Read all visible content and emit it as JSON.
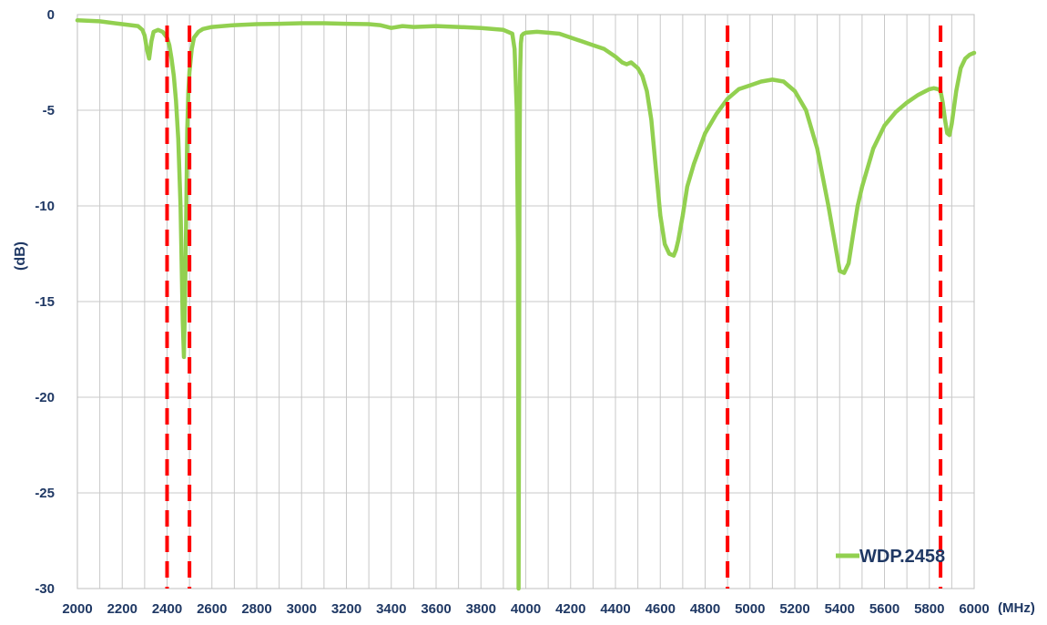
{
  "chart_data": {
    "type": "line",
    "title": "",
    "xlabel": "(MHz)",
    "ylabel": "(dB)",
    "xlim": [
      2000,
      6000
    ],
    "ylim": [
      -30,
      0
    ],
    "x_ticks": [
      "2000",
      "2200",
      "2400",
      "2600",
      "2800",
      "3000",
      "3200",
      "3400",
      "3600",
      "3800",
      "4000",
      "4200",
      "4400",
      "4600",
      "4800",
      "5000",
      "5200",
      "5400",
      "5600",
      "5800",
      "6000"
    ],
    "y_ticks": [
      "0",
      "-5",
      "-10",
      "-15",
      "-20",
      "-25",
      "-30"
    ],
    "grid": true,
    "legend_position": "bottom-right",
    "reference_lines": {
      "color": "#ff0000",
      "style": "dashed",
      "x": [
        2400,
        2500,
        4900,
        5850
      ]
    },
    "series": [
      {
        "name": "WDP.2458",
        "color": "#92d050",
        "x": [
          2000,
          2100,
          2200,
          2270,
          2290,
          2300,
          2310,
          2320,
          2330,
          2340,
          2360,
          2380,
          2400,
          2410,
          2420,
          2430,
          2440,
          2450,
          2460,
          2465,
          2470,
          2475,
          2480,
          2485,
          2490,
          2495,
          2500,
          2510,
          2520,
          2540,
          2560,
          2600,
          2700,
          2800,
          2900,
          3000,
          3100,
          3200,
          3300,
          3350,
          3400,
          3450,
          3500,
          3600,
          3700,
          3800,
          3900,
          3940,
          3950,
          3960,
          3965,
          3968,
          3970,
          3972,
          3975,
          3978,
          3982,
          3990,
          4000,
          4050,
          4100,
          4150,
          4200,
          4250,
          4300,
          4350,
          4400,
          4430,
          4450,
          4470,
          4500,
          4520,
          4540,
          4560,
          4580,
          4600,
          4620,
          4640,
          4660,
          4670,
          4680,
          4700,
          4720,
          4750,
          4800,
          4850,
          4900,
          4950,
          5000,
          5050,
          5100,
          5150,
          5200,
          5250,
          5300,
          5350,
          5380,
          5400,
          5420,
          5440,
          5460,
          5480,
          5500,
          5550,
          5600,
          5650,
          5700,
          5750,
          5800,
          5820,
          5840,
          5850,
          5860,
          5870,
          5880,
          5890,
          5900,
          5920,
          5940,
          5960,
          5980,
          6000
        ],
        "y": [
          -0.3,
          -0.35,
          -0.5,
          -0.6,
          -0.8,
          -1.1,
          -1.8,
          -2.3,
          -1.4,
          -0.9,
          -0.8,
          -0.9,
          -1.2,
          -1.6,
          -2.3,
          -3.2,
          -4.5,
          -6.5,
          -10,
          -13,
          -16,
          -17.9,
          -15,
          -11,
          -6,
          -4,
          -3,
          -1.8,
          -1.2,
          -0.9,
          -0.75,
          -0.65,
          -0.55,
          -0.5,
          -0.48,
          -0.45,
          -0.45,
          -0.48,
          -0.5,
          -0.55,
          -0.7,
          -0.6,
          -0.65,
          -0.6,
          -0.65,
          -0.7,
          -0.8,
          -1,
          -1.8,
          -5,
          -12,
          -30,
          -20,
          -8,
          -3,
          -1.5,
          -1.1,
          -1,
          -0.95,
          -0.9,
          -0.95,
          -1,
          -1.2,
          -1.4,
          -1.6,
          -1.8,
          -2.2,
          -2.5,
          -2.6,
          -2.5,
          -2.8,
          -3.2,
          -4,
          -5.5,
          -8,
          -10.5,
          -12,
          -12.5,
          -12.6,
          -12.3,
          -11.8,
          -10.5,
          -9,
          -7.8,
          -6.2,
          -5.2,
          -4.4,
          -3.9,
          -3.7,
          -3.5,
          -3.4,
          -3.5,
          -4,
          -5,
          -7,
          -10,
          -12,
          -13.4,
          -13.5,
          -13,
          -11.5,
          -10,
          -9,
          -7,
          -5.8,
          -5.1,
          -4.6,
          -4.2,
          -3.9,
          -3.85,
          -3.9,
          -4,
          -4.6,
          -5.5,
          -6.2,
          -6.3,
          -5.7,
          -4,
          -2.8,
          -2.3,
          -2.1,
          -2
        ]
      }
    ]
  }
}
